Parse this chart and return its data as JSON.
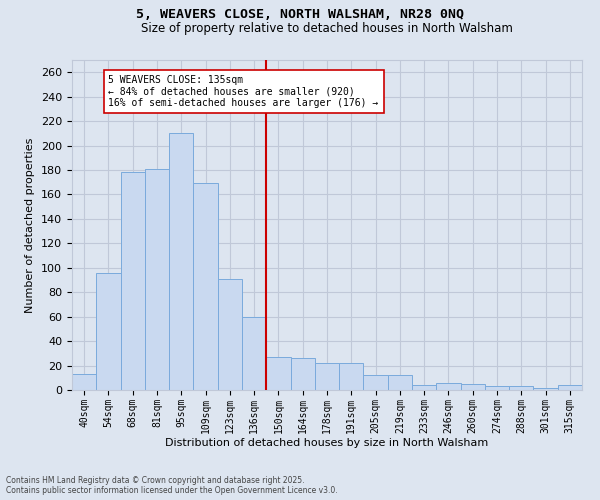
{
  "title_line1": "5, WEAVERS CLOSE, NORTH WALSHAM, NR28 0NQ",
  "title_line2": "Size of property relative to detached houses in North Walsham",
  "xlabel": "Distribution of detached houses by size in North Walsham",
  "ylabel": "Number of detached properties",
  "footnote1": "Contains HM Land Registry data © Crown copyright and database right 2025.",
  "footnote2": "Contains public sector information licensed under the Open Government Licence v3.0.",
  "bar_labels": [
    "40sqm",
    "54sqm",
    "68sqm",
    "81sqm",
    "95sqm",
    "109sqm",
    "123sqm",
    "136sqm",
    "150sqm",
    "164sqm",
    "178sqm",
    "191sqm",
    "205sqm",
    "219sqm",
    "233sqm",
    "246sqm",
    "260sqm",
    "274sqm",
    "288sqm",
    "301sqm",
    "315sqm"
  ],
  "bar_values": [
    13,
    96,
    178,
    181,
    210,
    169,
    91,
    60,
    27,
    26,
    22,
    22,
    12,
    12,
    4,
    6,
    5,
    3,
    3,
    2,
    4
  ],
  "bar_color": "#c9d9f0",
  "bar_edge_color": "#7aaadc",
  "grid_color": "#c0c8d8",
  "background_color": "#dde5f0",
  "vline_x": 7.5,
  "vline_label": "5 WEAVERS CLOSE: 135sqm",
  "annotation_line2": "← 84% of detached houses are smaller (920)",
  "annotation_line3": "16% of semi-detached houses are larger (176) →",
  "annotation_box_color": "#ffffff",
  "vline_color": "#cc0000",
  "ylim": [
    0,
    270
  ],
  "yticks": [
    0,
    20,
    40,
    60,
    80,
    100,
    120,
    140,
    160,
    180,
    200,
    220,
    240,
    260
  ],
  "fig_width": 6.0,
  "fig_height": 5.0,
  "dpi": 100
}
